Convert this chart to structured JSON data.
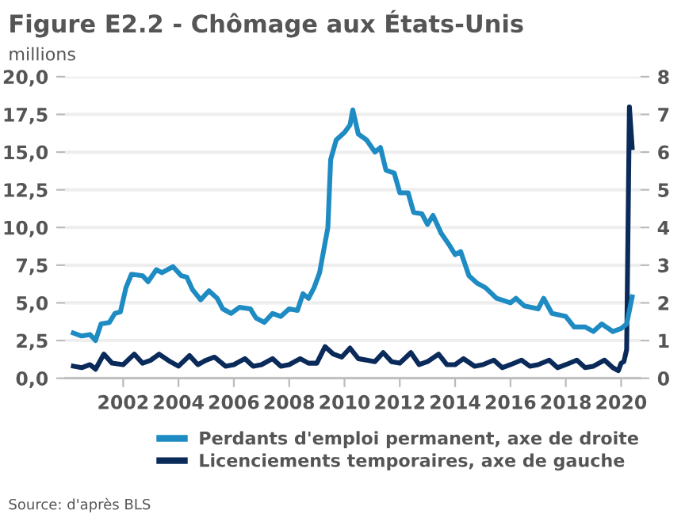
{
  "chart_data": {
    "type": "line",
    "title": "Figure E2.2 - Chômage aux États-Unis",
    "ylabel": "millions",
    "annotations": [
      "Source: d'après BLS"
    ],
    "xlim": [
      1999.9,
      2020.7
    ],
    "xticks": [
      2002,
      2004,
      2006,
      2008,
      2010,
      2012,
      2014,
      2016,
      2018,
      2020
    ],
    "ylim": [
      0,
      20
    ],
    "yticks": [
      {
        "value": 0,
        "label": "0,0"
      },
      {
        "value": 2.5,
        "label": "2,5"
      },
      {
        "value": 5,
        "label": "5,0"
      },
      {
        "value": 7.5,
        "label": "7,5"
      },
      {
        "value": 10,
        "label": "10,0"
      },
      {
        "value": 12.5,
        "label": "12,5"
      },
      {
        "value": 15,
        "label": "15,0"
      },
      {
        "value": 17.5,
        "label": "17,5"
      },
      {
        "value": 20,
        "label": "20,0"
      }
    ],
    "y2lim": [
      0,
      8
    ],
    "y2ticks": [
      0,
      1,
      2,
      3,
      4,
      5,
      6,
      7,
      8
    ],
    "grid": "y",
    "legend": "bottom",
    "line_style": "solid",
    "marker": "none",
    "series": [
      {
        "name": "Perdants d'emploi permanent, axe de droite",
        "color": "#1e8bc3",
        "axis": "y2",
        "x": [
          2000.2,
          2000.5,
          2000.8,
          2001.0,
          2001.2,
          2001.5,
          2001.7,
          2001.9,
          2002.1,
          2002.3,
          2002.7,
          2002.9,
          2003.2,
          2003.4,
          2003.8,
          2004.1,
          2004.3,
          2004.5,
          2004.8,
          2005.1,
          2005.4,
          2005.6,
          2005.9,
          2006.2,
          2006.6,
          2006.8,
          2007.1,
          2007.4,
          2007.7,
          2008.0,
          2008.3,
          2008.5,
          2008.7,
          2008.9,
          2009.1,
          2009.4,
          2009.5,
          2009.7,
          2010.0,
          2010.2,
          2010.3,
          2010.5,
          2010.8,
          2011.1,
          2011.3,
          2011.5,
          2011.8,
          2012.0,
          2012.3,
          2012.5,
          2012.8,
          2013.0,
          2013.2,
          2013.5,
          2013.8,
          2014.0,
          2014.2,
          2014.5,
          2014.8,
          2015.1,
          2015.5,
          2016.0,
          2016.2,
          2016.5,
          2017.0,
          2017.2,
          2017.5,
          2018.0,
          2018.3,
          2018.7,
          2019.0,
          2019.3,
          2019.7,
          2020.0,
          2020.2,
          2020.4
        ],
        "values": [
          1.2,
          1.12,
          1.16,
          1.0,
          1.44,
          1.48,
          1.72,
          1.76,
          2.4,
          2.76,
          2.72,
          2.56,
          2.88,
          2.8,
          2.96,
          2.72,
          2.68,
          2.36,
          2.08,
          2.32,
          2.12,
          1.84,
          1.72,
          1.88,
          1.84,
          1.6,
          1.48,
          1.72,
          1.64,
          1.84,
          1.8,
          2.24,
          2.12,
          2.4,
          2.8,
          4.0,
          5.8,
          6.32,
          6.52,
          6.72,
          7.12,
          6.48,
          6.32,
          6.0,
          6.12,
          5.52,
          5.44,
          4.92,
          4.92,
          4.4,
          4.36,
          4.08,
          4.32,
          3.84,
          3.52,
          3.28,
          3.36,
          2.72,
          2.52,
          2.4,
          2.12,
          2.0,
          2.12,
          1.92,
          1.84,
          2.12,
          1.72,
          1.64,
          1.36,
          1.36,
          1.24,
          1.44,
          1.24,
          1.32,
          1.44,
          2.16
        ]
      },
      {
        "name": "Licenciements temporaires, axe de gauche",
        "color": "#0a2a5a",
        "x": [
          2000.2,
          2000.5,
          2000.8,
          2001.0,
          2001.3,
          2001.6,
          2002.0,
          2002.4,
          2002.7,
          2003.0,
          2003.3,
          2003.7,
          2004.0,
          2004.4,
          2004.7,
          2005.0,
          2005.3,
          2005.7,
          2006.0,
          2006.4,
          2006.7,
          2007.0,
          2007.4,
          2007.7,
          2008.0,
          2008.4,
          2008.7,
          2009.0,
          2009.3,
          2009.6,
          2009.9,
          2010.2,
          2010.5,
          2010.8,
          2011.1,
          2011.4,
          2011.7,
          2012.0,
          2012.4,
          2012.7,
          2013.0,
          2013.4,
          2013.7,
          2014.0,
          2014.3,
          2014.7,
          2015.0,
          2015.4,
          2015.7,
          2016.0,
          2016.4,
          2016.7,
          2017.0,
          2017.4,
          2017.7,
          2018.0,
          2018.4,
          2018.7,
          2019.0,
          2019.4,
          2019.7,
          2019.9,
          2020.0,
          2020.1,
          2020.2,
          2020.3,
          2020.4
        ],
        "values": [
          0.8,
          0.7,
          0.9,
          0.6,
          1.6,
          1.0,
          0.9,
          1.6,
          1.0,
          1.2,
          1.6,
          1.1,
          0.8,
          1.5,
          0.9,
          1.2,
          1.4,
          0.8,
          0.9,
          1.3,
          0.8,
          0.9,
          1.3,
          0.8,
          0.9,
          1.3,
          1.0,
          1.0,
          2.1,
          1.6,
          1.4,
          2.0,
          1.3,
          1.2,
          1.1,
          1.7,
          1.1,
          1.0,
          1.7,
          0.9,
          1.1,
          1.6,
          0.9,
          0.9,
          1.3,
          0.8,
          0.9,
          1.2,
          0.7,
          0.9,
          1.2,
          0.8,
          0.9,
          1.2,
          0.7,
          0.9,
          1.2,
          0.7,
          0.8,
          1.2,
          0.7,
          0.5,
          1.0,
          1.1,
          1.9,
          18.0,
          15.3
        ]
      }
    ]
  }
}
